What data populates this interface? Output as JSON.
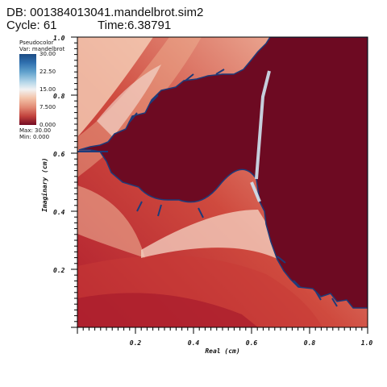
{
  "header": {
    "db_line": "DB: 001384013041.mandelbrot.sim2",
    "cycle_label": "Cycle: 61",
    "time_label": "Time:6.38791"
  },
  "legend": {
    "plot_type": "Pseudocolor",
    "var_label": "Var: mandelbrot",
    "ticks": [
      "30.00",
      "22.50",
      "15.00",
      "7.500",
      "0.000"
    ],
    "max_label": "Max: 30.00",
    "min_label": "Min: 0.000"
  },
  "plot": {
    "x_axis_title": "Real (cm)",
    "y_axis_title": "Imaginary (cm)",
    "x_range": [
      0.0,
      1.0
    ],
    "y_range": [
      0.0,
      1.0
    ],
    "x_ticks": [
      "0.2",
      "0.4",
      "0.6",
      "0.8",
      "1.0"
    ],
    "y_ticks": [
      "0.2",
      "0.4",
      "0.6",
      "0.8",
      "1.0"
    ],
    "colors": {
      "inside": "#6d0a22",
      "max": "#1c4c84",
      "mid": "#f2f2f2",
      "min": "#b01e2e"
    }
  }
}
